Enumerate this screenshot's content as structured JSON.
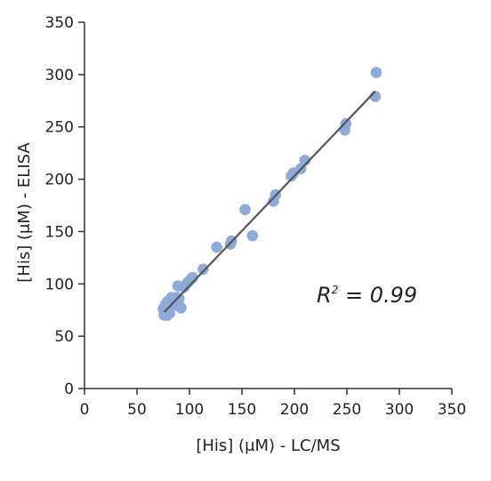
{
  "chart_data": {
    "type": "scatter",
    "title": "",
    "xlabel": "[His] (μM) - LC/MS",
    "ylabel": "[His] (μM) - ELISA",
    "xlim": [
      0,
      350
    ],
    "ylim": [
      0,
      350
    ],
    "xticks": [
      0,
      50,
      100,
      150,
      200,
      250,
      300,
      350
    ],
    "yticks": [
      0,
      50,
      100,
      150,
      200,
      250,
      300,
      350
    ],
    "grid": false,
    "annotation": {
      "symbol": "R",
      "superscript": "2",
      "value": " = 0.99"
    },
    "trendline": {
      "x": [
        76,
        277
      ],
      "y": [
        73,
        284
      ]
    },
    "colors": {
      "points": "#8eaad8",
      "trendline": "#555555",
      "axis": "#333333"
    },
    "series": [
      {
        "x": [
          75,
          76,
          77,
          77,
          78,
          79,
          79,
          80,
          81,
          82,
          83,
          84,
          85,
          86,
          87,
          88,
          89,
          90,
          92,
          95,
          98,
          100,
          102,
          103,
          113,
          126,
          139,
          140,
          153,
          160,
          180,
          182,
          197,
          199,
          206,
          210,
          248,
          249,
          277,
          278
        ],
        "y": [
          76,
          70,
          80,
          73,
          75,
          70,
          83,
          78,
          72,
          85,
          87,
          79,
          84,
          81,
          82,
          87,
          98,
          86,
          77,
          97,
          101,
          103,
          105,
          106,
          114,
          135,
          138,
          141,
          171,
          146,
          179,
          185,
          203,
          206,
          210,
          218,
          247,
          253,
          279,
          302
        ]
      }
    ]
  }
}
